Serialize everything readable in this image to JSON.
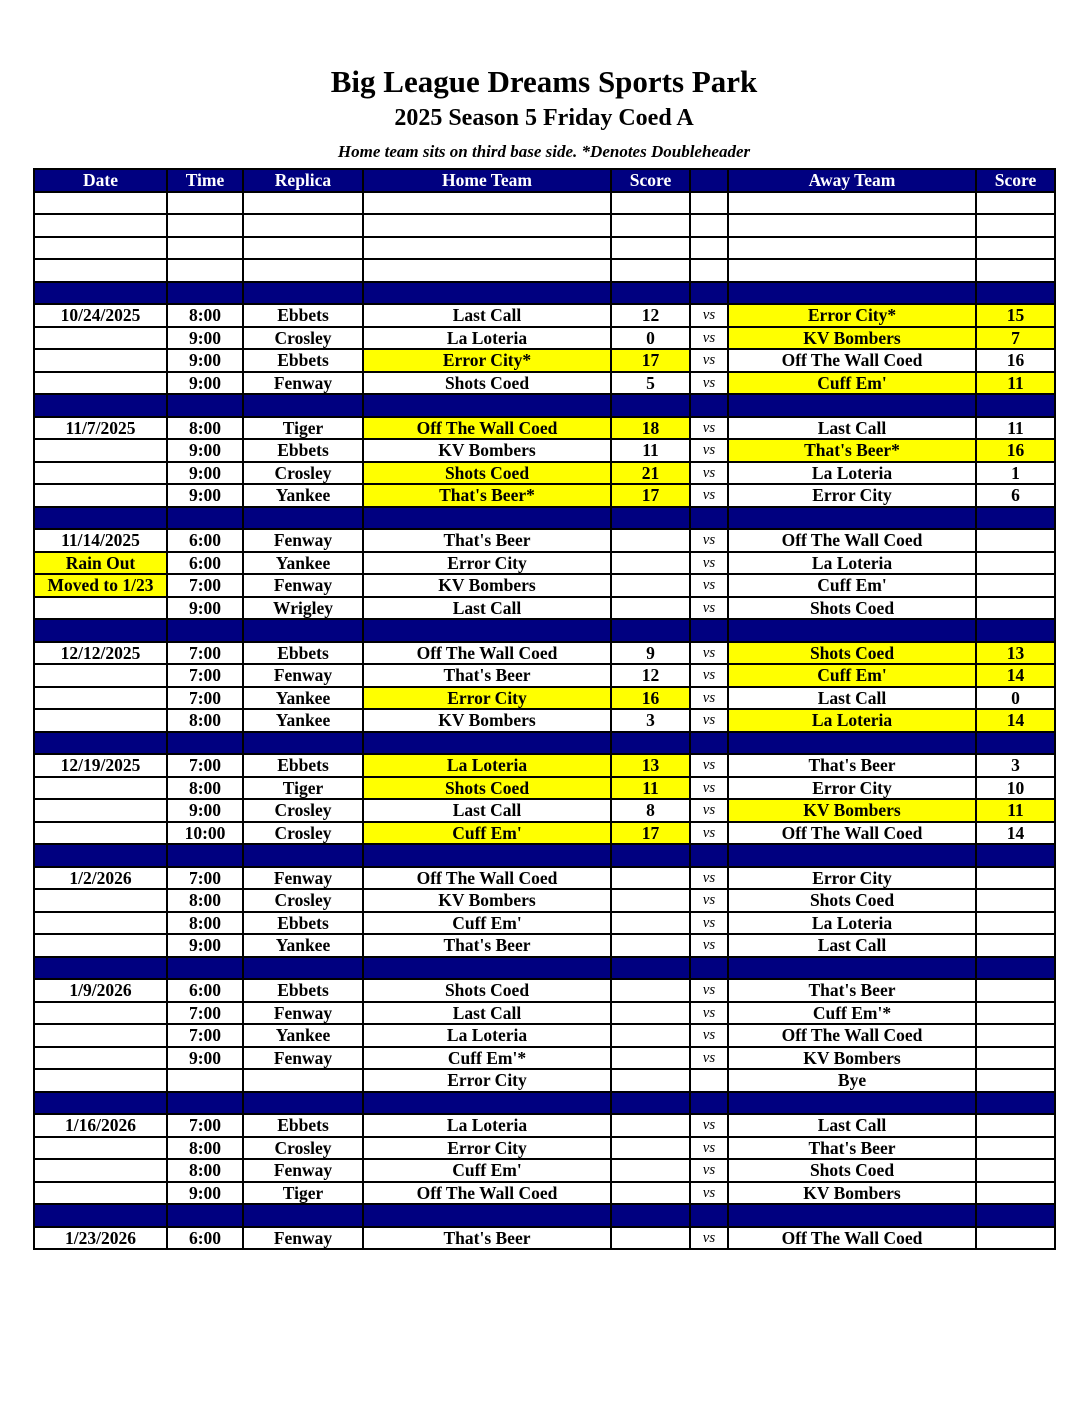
{
  "title": "Big League Dreams Sports Park",
  "subtitle": "2025 Season 5 Friday Coed A",
  "note": "Home team sits on third base side.  *Denotes Doubleheader",
  "colors": {
    "header_bg": "#000080",
    "winner_highlight": "#ffff00"
  },
  "columns": [
    "Date",
    "Time",
    "Replica",
    "Home Team",
    "Score",
    "",
    "Away Team",
    "Score"
  ],
  "rows": [
    {
      "cells": [
        "",
        "",
        "",
        "",
        "",
        "",
        "",
        ""
      ]
    },
    {
      "cells": [
        "",
        "",
        "",
        "",
        "",
        "",
        "",
        ""
      ]
    },
    {
      "cells": [
        "",
        "",
        "",
        "",
        "",
        "",
        "",
        ""
      ]
    },
    {
      "cells": [
        "",
        "",
        "",
        "",
        "",
        "",
        "",
        ""
      ]
    },
    {
      "sep": true
    },
    {
      "cells": [
        "10/24/2025",
        "8:00",
        "Ebbets",
        "Last Call",
        "12",
        "vs",
        "Error City*",
        "15"
      ],
      "win": "away"
    },
    {
      "cells": [
        "",
        "9:00",
        "Crosley",
        "La Loteria",
        "0",
        "vs",
        "KV Bombers",
        "7"
      ],
      "win": "away"
    },
    {
      "cells": [
        "",
        "9:00",
        "Ebbets",
        "Error City*",
        "17",
        "vs",
        "Off The Wall Coed",
        "16"
      ],
      "win": "home"
    },
    {
      "cells": [
        "",
        "9:00",
        "Fenway",
        "Shots Coed",
        "5",
        "vs",
        "Cuff Em'",
        "11"
      ],
      "win": "away"
    },
    {
      "sep": true
    },
    {
      "cells": [
        "11/7/2025",
        "8:00",
        "Tiger",
        "Off The Wall Coed",
        "18",
        "vs",
        "Last Call",
        "11"
      ],
      "win": "home"
    },
    {
      "cells": [
        "",
        "9:00",
        "Ebbets",
        "KV Bombers",
        "11",
        "vs",
        "That's Beer*",
        "16"
      ],
      "win": "away"
    },
    {
      "cells": [
        "",
        "9:00",
        "Crosley",
        "Shots Coed",
        "21",
        "vs",
        "La Loteria",
        "1"
      ],
      "win": "home"
    },
    {
      "cells": [
        "",
        "9:00",
        "Yankee",
        "That's Beer*",
        "17",
        "vs",
        "Error City",
        "6"
      ],
      "win": "home"
    },
    {
      "sep": true
    },
    {
      "cells": [
        "11/14/2025",
        "6:00",
        "Fenway",
        "That's Beer",
        "",
        "vs",
        "Off The Wall Coed",
        ""
      ]
    },
    {
      "cells": [
        "Rain Out",
        "6:00",
        "Yankee",
        "Error City",
        "",
        "vs",
        "La Loteria",
        ""
      ],
      "date_hl": true
    },
    {
      "cells": [
        "Moved to 1/23",
        "7:00",
        "Fenway",
        "KV Bombers",
        "",
        "vs",
        "Cuff Em'",
        ""
      ],
      "date_hl": true
    },
    {
      "cells": [
        "",
        "9:00",
        "Wrigley",
        "Last Call",
        "",
        "vs",
        "Shots Coed",
        ""
      ]
    },
    {
      "sep": true
    },
    {
      "cells": [
        "12/12/2025",
        "7:00",
        "Ebbets",
        "Off The Wall Coed",
        "9",
        "vs",
        "Shots Coed",
        "13"
      ],
      "win": "away"
    },
    {
      "cells": [
        "",
        "7:00",
        "Fenway",
        "That's Beer",
        "12",
        "vs",
        "Cuff Em'",
        "14"
      ],
      "win": "away"
    },
    {
      "cells": [
        "",
        "7:00",
        "Yankee",
        "Error City",
        "16",
        "vs",
        "Last Call",
        "0"
      ],
      "win": "home"
    },
    {
      "cells": [
        "",
        "8:00",
        "Yankee",
        "KV Bombers",
        "3",
        "vs",
        "La Loteria",
        "14"
      ],
      "win": "away"
    },
    {
      "sep": true
    },
    {
      "cells": [
        "12/19/2025",
        "7:00",
        "Ebbets",
        "La Loteria",
        "13",
        "vs",
        "That's Beer",
        "3"
      ],
      "win": "home"
    },
    {
      "cells": [
        "",
        "8:00",
        "Tiger",
        "Shots Coed",
        "11",
        "vs",
        "Error City",
        "10"
      ],
      "win": "home"
    },
    {
      "cells": [
        "",
        "9:00",
        "Crosley",
        "Last Call",
        "8",
        "vs",
        "KV Bombers",
        "11"
      ],
      "win": "away"
    },
    {
      "cells": [
        "",
        "10:00",
        "Crosley",
        "Cuff Em'",
        "17",
        "vs",
        "Off The Wall Coed",
        "14"
      ],
      "win": "home"
    },
    {
      "sep": true
    },
    {
      "cells": [
        "1/2/2026",
        "7:00",
        "Fenway",
        "Off The Wall Coed",
        "",
        "vs",
        "Error City",
        ""
      ]
    },
    {
      "cells": [
        "",
        "8:00",
        "Crosley",
        "KV Bombers",
        "",
        "vs",
        "Shots Coed",
        ""
      ]
    },
    {
      "cells": [
        "",
        "8:00",
        "Ebbets",
        "Cuff Em'",
        "",
        "vs",
        "La Loteria",
        ""
      ]
    },
    {
      "cells": [
        "",
        "9:00",
        "Yankee",
        "That's Beer",
        "",
        "vs",
        "Last Call",
        ""
      ]
    },
    {
      "sep": true
    },
    {
      "cells": [
        "1/9/2026",
        "6:00",
        "Ebbets",
        "Shots Coed",
        "",
        "vs",
        "That's Beer",
        ""
      ]
    },
    {
      "cells": [
        "",
        "7:00",
        "Fenway",
        "Last Call",
        "",
        "vs",
        "Cuff Em'*",
        ""
      ]
    },
    {
      "cells": [
        "",
        "7:00",
        "Yankee",
        "La Loteria",
        "",
        "vs",
        "Off The Wall Coed",
        ""
      ]
    },
    {
      "cells": [
        "",
        "9:00",
        "Fenway",
        "Cuff Em'*",
        "",
        "vs",
        "KV Bombers",
        ""
      ]
    },
    {
      "cells": [
        "",
        "",
        "",
        "Error City",
        "",
        "",
        "Bye",
        ""
      ]
    },
    {
      "sep": true
    },
    {
      "cells": [
        "1/16/2026",
        "7:00",
        "Ebbets",
        "La Loteria",
        "",
        "vs",
        "Last Call",
        ""
      ]
    },
    {
      "cells": [
        "",
        "8:00",
        "Crosley",
        "Error City",
        "",
        "vs",
        "That's Beer",
        ""
      ]
    },
    {
      "cells": [
        "",
        "8:00",
        "Fenway",
        "Cuff Em'",
        "",
        "vs",
        "Shots Coed",
        ""
      ]
    },
    {
      "cells": [
        "",
        "9:00",
        "Tiger",
        "Off The Wall Coed",
        "",
        "vs",
        "KV Bombers",
        ""
      ]
    },
    {
      "sep": true
    },
    {
      "cells": [
        "1/23/2026",
        "6:00",
        "Fenway",
        "That's Beer",
        "",
        "vs",
        "Off The Wall Coed",
        ""
      ]
    }
  ]
}
